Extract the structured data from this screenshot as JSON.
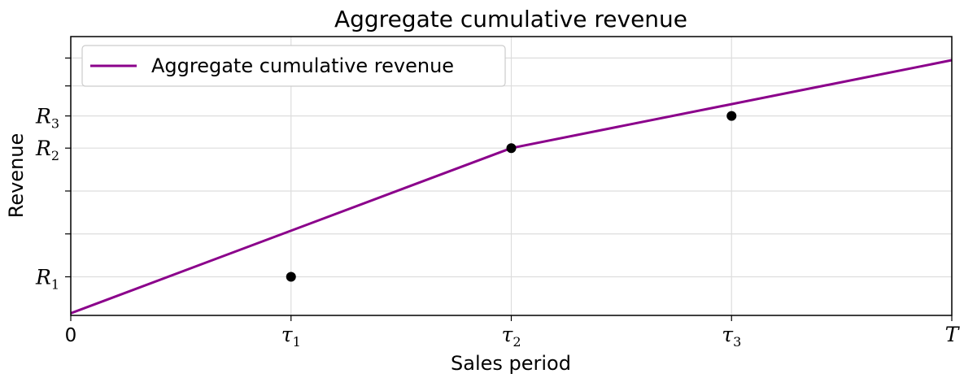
{
  "chart_data": {
    "type": "line",
    "title": "Aggregate cumulative revenue",
    "xlabel": "Sales period",
    "ylabel": "Revenue",
    "xlim": [
      0,
      4
    ],
    "ylim": [
      0,
      6.5
    ],
    "grid": true,
    "legend_position": "top-left",
    "x_ticks": [
      {
        "value": 0,
        "label": "0",
        "sub": ""
      },
      {
        "value": 1,
        "label": "τ",
        "sub": "1"
      },
      {
        "value": 2,
        "label": "τ",
        "sub": "2"
      },
      {
        "value": 3,
        "label": "τ",
        "sub": "3"
      },
      {
        "value": 4,
        "label": "T",
        "sub": ""
      }
    ],
    "y_ticks": [
      {
        "value": 0.9,
        "label": "R",
        "sub": "1"
      },
      {
        "value": 3.9,
        "label": "R",
        "sub": "2"
      },
      {
        "value": 4.65,
        "label": "R",
        "sub": "3"
      }
    ],
    "y_minor_gridlines": [
      1.9,
      2.9,
      5.35,
      6.0
    ],
    "series": [
      {
        "name": "Aggregate cumulative revenue",
        "color": "#8B008B",
        "x": [
          0,
          2,
          4
        ],
        "y": [
          0.05,
          3.9,
          5.95
        ]
      }
    ],
    "points": {
      "color": "#000000",
      "x": [
        1,
        2,
        3
      ],
      "y": [
        0.9,
        3.9,
        4.65
      ]
    }
  }
}
